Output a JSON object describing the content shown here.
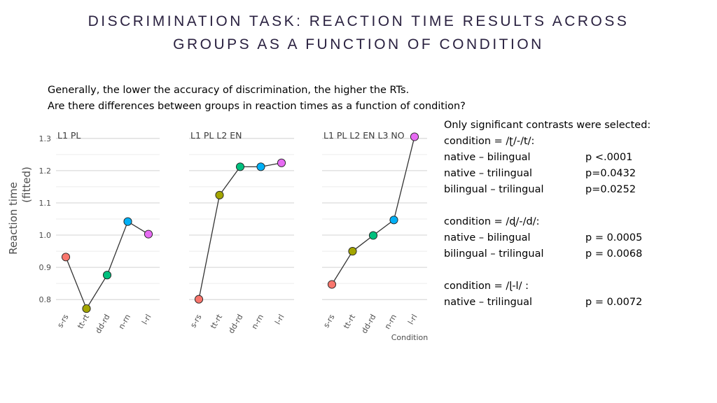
{
  "slide": {
    "title_line1": "DISCRIMINATION TASK: REACTION TIME RESULTS ACROSS",
    "title_line2": "GROUPS AS A FUNCTION OF CONDITION",
    "intro_line1": "Generally, the lower the accuracy of discrimination, the higher the RTs.",
    "intro_line2": "Are there differences between groups in reaction times as a function of condition?"
  },
  "stats": {
    "heading": "Only significant contrasts were selected:",
    "groups": [
      {
        "condition": "condition = /ʈ/-/t/:",
        "rows": [
          {
            "pair": "native – bilingual",
            "p": "p <.0001"
          },
          {
            "pair": "native – trilingual",
            "p": "p=0.0432"
          },
          {
            "pair": "bilingual – trilingual",
            "p": "p=0.0252"
          }
        ]
      },
      {
        "condition": "condition = /ɖ/-/d/:",
        "rows": [
          {
            "pair": "native – bilingual",
            "p": "p = 0.0005"
          },
          {
            "pair": "bilingual – trilingual",
            "p": "p = 0.0068"
          }
        ]
      },
      {
        "condition": "condition = /ɭ-l/ :",
        "rows": [
          {
            "pair": "native – trilingual",
            "p": "p = 0.0072"
          }
        ]
      }
    ]
  },
  "chart_data": {
    "type": "line",
    "ylabel_line1": "Reaction time",
    "ylabel_line2": "(fitted)",
    "xlabel": "Condition",
    "ylim": [
      0.77,
      1.33
    ],
    "yticks": [
      0.8,
      0.9,
      1.0,
      1.1,
      1.2,
      1.3
    ],
    "ytick_labels": [
      "0.8",
      "0.9",
      "1.0",
      "1.1",
      "1.2",
      "1.3"
    ],
    "grid": true,
    "categories": [
      "s-rs",
      "tt-rt",
      "dd-rd",
      "n-rn",
      "l-rl"
    ],
    "point_colors": [
      "#f8766d",
      "#a3a500",
      "#00bf7d",
      "#00b0f6",
      "#e76bf3"
    ],
    "panels": [
      {
        "name": "L1 PL",
        "values": [
          0.932,
          0.772,
          0.876,
          1.042,
          1.003
        ]
      },
      {
        "name": "L1 PL L2 EN",
        "values": [
          0.801,
          1.124,
          1.212,
          1.212,
          1.224
        ]
      },
      {
        "name": "L1 PL L2 EN L3 NO",
        "values": [
          0.847,
          0.95,
          0.999,
          1.047,
          1.305
        ]
      }
    ]
  }
}
